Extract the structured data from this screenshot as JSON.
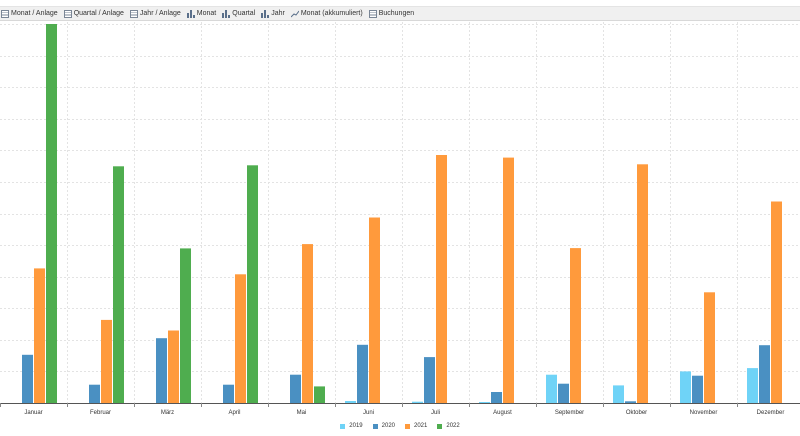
{
  "toolbar": {
    "items": [
      {
        "label": "Monat / Anlage",
        "icon": "table-icon"
      },
      {
        "label": "Quartal / Anlage",
        "icon": "table-icon"
      },
      {
        "label": "Jahr / Anlage",
        "icon": "table-icon"
      },
      {
        "label": "Monat",
        "icon": "bar-chart-icon"
      },
      {
        "label": "Quartal",
        "icon": "bar-chart-icon"
      },
      {
        "label": "Jahr",
        "icon": "bar-chart-icon"
      },
      {
        "label": "Monat (akkumuliert)",
        "icon": "line-chart-icon"
      },
      {
        "label": "Buchungen",
        "icon": "table-icon"
      }
    ]
  },
  "chart_data": {
    "type": "bar",
    "categories": [
      "Januar",
      "Februar",
      "März",
      "April",
      "Mai",
      "Juni",
      "Juli",
      "August",
      "September",
      "Oktober",
      "November",
      "Dezember"
    ],
    "ylim": [
      0,
      114
    ],
    "grid": true,
    "legend_position": "bottom-center",
    "series": [
      {
        "name": "2019",
        "color": "#6fd3f7",
        "values": [
          0,
          0,
          0,
          0,
          0,
          0.6,
          0.4,
          0.3,
          8.5,
          5.3,
          9.5,
          10.5
        ]
      },
      {
        "name": "2020",
        "color": "#4a90c2",
        "values": [
          14.5,
          5.5,
          19.5,
          5.5,
          8.5,
          17.5,
          13.8,
          3.3,
          5.8,
          0.5,
          8.2,
          17.4
        ]
      },
      {
        "name": "2021",
        "color": "#ff9a3c",
        "values": [
          40.5,
          25.0,
          21.8,
          38.7,
          47.8,
          55.8,
          74.6,
          73.8,
          46.6,
          71.8,
          33.3,
          60.6
        ]
      },
      {
        "name": "2022",
        "color": "#4fad4f",
        "values": [
          114.0,
          71.2,
          46.5,
          71.5,
          5.0,
          0,
          0,
          0,
          0,
          0,
          0,
          0
        ]
      }
    ]
  }
}
